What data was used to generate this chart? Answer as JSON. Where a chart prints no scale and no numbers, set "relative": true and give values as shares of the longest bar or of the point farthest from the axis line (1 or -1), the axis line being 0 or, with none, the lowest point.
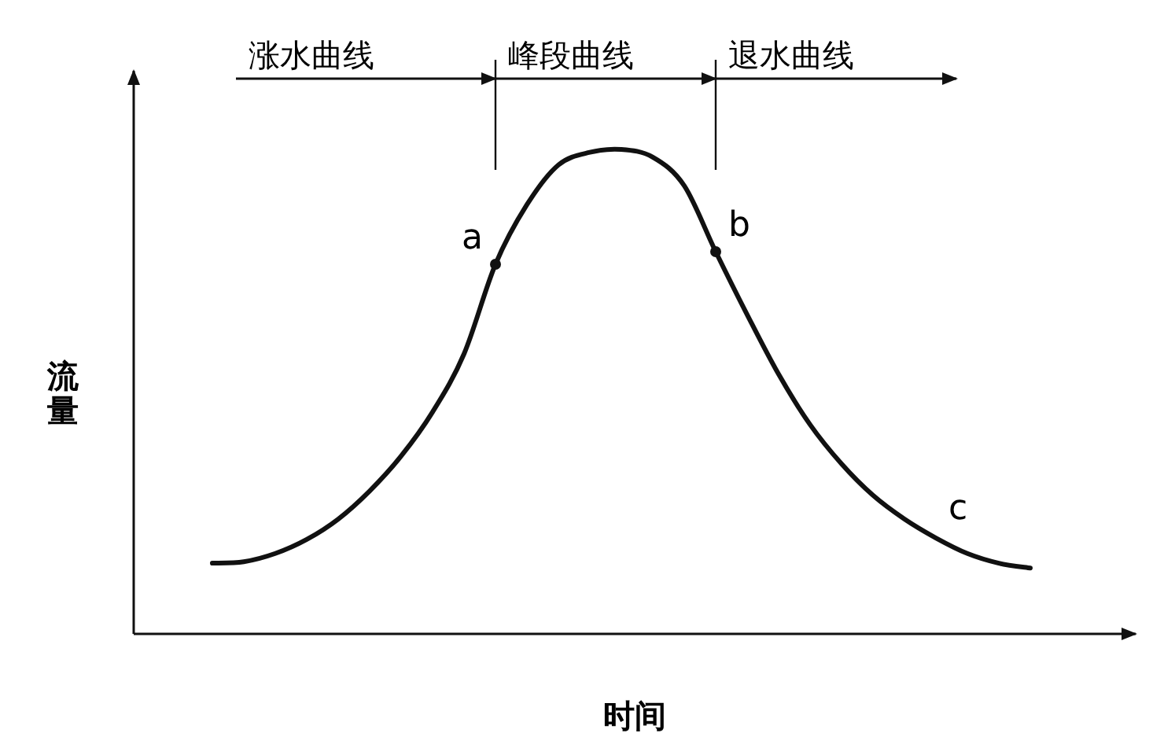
{
  "chart_data": {
    "type": "line",
    "relative": true,
    "xlabel": "时间",
    "ylabel": "流量",
    "categories": [
      null,
      null,
      null,
      null,
      null,
      null,
      null,
      null,
      null,
      null,
      null,
      null,
      null,
      null,
      null,
      null,
      null,
      null,
      null,
      null,
      null,
      null,
      null,
      null,
      null,
      null,
      null
    ],
    "series": [
      {
        "color": "#111111",
        "values": [
          0.146,
          0.149,
          0.166,
          0.195,
          0.237,
          0.295,
          0.367,
          0.458,
          0.578,
          0.763,
          0.886,
          0.968,
          0.994,
          1,
          0.984,
          0.925,
          0.789,
          0.659,
          0.536,
          0.432,
          0.351,
          0.286,
          0.237,
          0.198,
          0.166,
          0.146,
          0.136
        ]
      }
    ],
    "annotations": [
      "涨水曲线",
      "峰段曲线",
      "退水曲线",
      "a",
      "b",
      "c"
    ]
  }
}
